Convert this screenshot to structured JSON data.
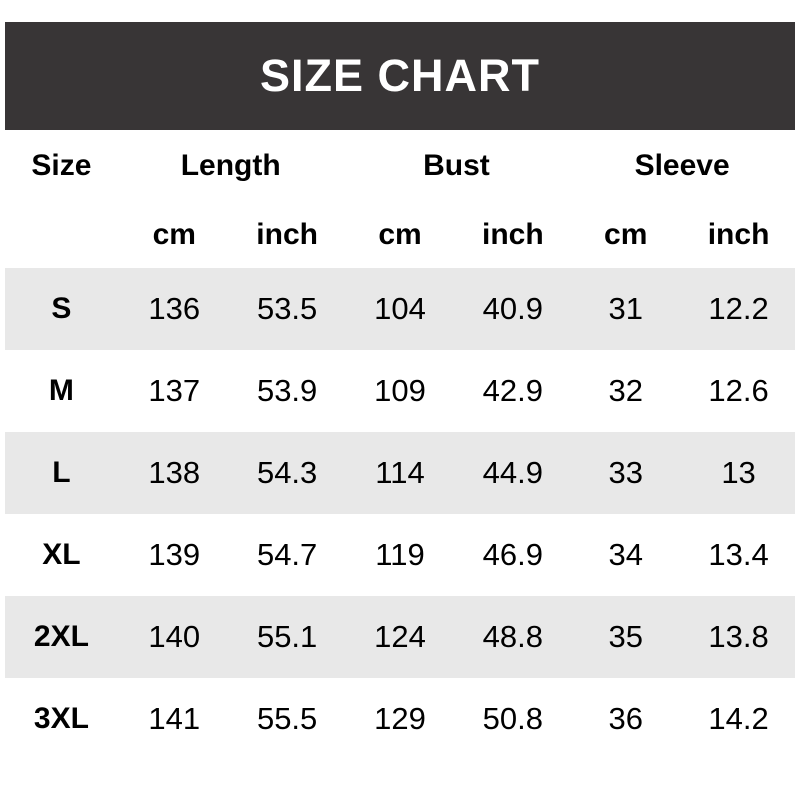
{
  "header": {
    "title": "SIZE CHART"
  },
  "colors": {
    "title_bar_bg": "#383536",
    "title_text": "#ffffff",
    "stripe_row_bg": "#e8e8e8",
    "body_text": "#000000"
  },
  "chart_data": {
    "type": "table",
    "title": "SIZE CHART",
    "column_groups": [
      {
        "label": "Size",
        "span": 1
      },
      {
        "label": "Length",
        "span": 2
      },
      {
        "label": "Bust",
        "span": 2
      },
      {
        "label": "Sleeve",
        "span": 2
      }
    ],
    "unit_row": [
      "",
      "cm",
      "inch",
      "cm",
      "inch",
      "cm",
      "inch"
    ],
    "columns": [
      "Size",
      "Length (cm)",
      "Length (inch)",
      "Bust (cm)",
      "Bust (inch)",
      "Sleeve (cm)",
      "Sleeve (inch)"
    ],
    "rows": [
      {
        "size": "S",
        "cells": [
          "136",
          "53.5",
          "104",
          "40.9",
          "31",
          "12.2"
        ]
      },
      {
        "size": "M",
        "cells": [
          "137",
          "53.9",
          "109",
          "42.9",
          "32",
          "12.6"
        ]
      },
      {
        "size": "L",
        "cells": [
          "138",
          "54.3",
          "114",
          "44.9",
          "33",
          "13"
        ]
      },
      {
        "size": "XL",
        "cells": [
          "139",
          "54.7",
          "119",
          "46.9",
          "34",
          "13.4"
        ]
      },
      {
        "size": "2XL",
        "cells": [
          "140",
          "55.1",
          "124",
          "48.8",
          "35",
          "13.8"
        ]
      },
      {
        "size": "3XL",
        "cells": [
          "141",
          "55.5",
          "129",
          "50.8",
          "36",
          "14.2"
        ]
      }
    ],
    "layout": {
      "stripe": "odd data rows shaded",
      "alignment": "center"
    }
  }
}
